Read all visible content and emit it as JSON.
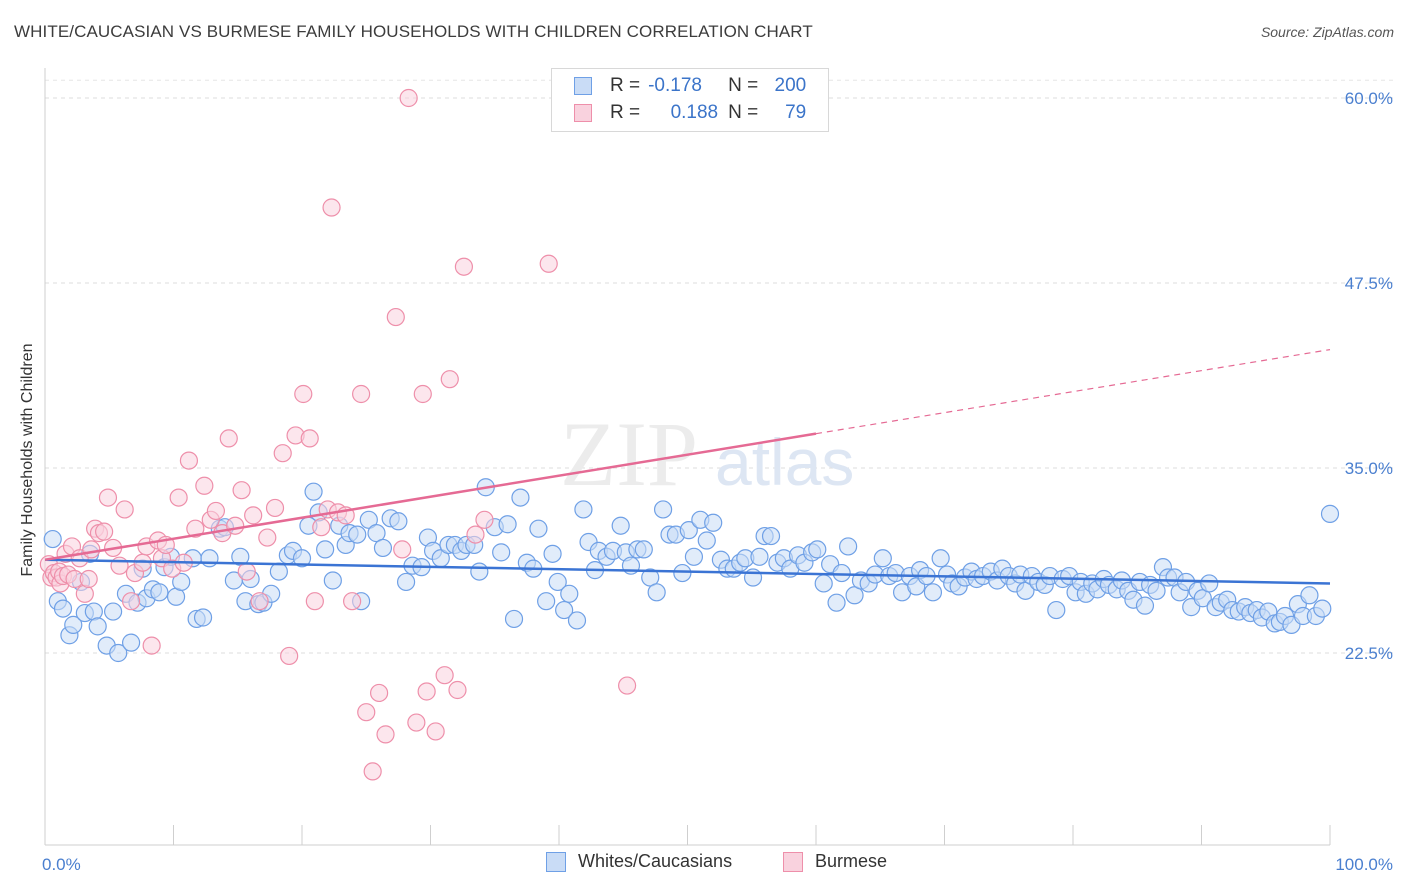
{
  "title": "WHITE/CAUCASIAN VS BURMESE FAMILY HOUSEHOLDS WITH CHILDREN CORRELATION CHART",
  "source": "Source: ZipAtlas.com",
  "watermark": "ZIPatlas",
  "legend_top": {
    "rows": [
      {
        "r_label": "R =",
        "r_value": "-0.178",
        "n_label": "N =",
        "n_value": "200",
        "color": "#6fa0e6",
        "fill": "#c9dcf6"
      },
      {
        "r_label": "R =",
        "r_value": "0.188",
        "n_label": "N =",
        "n_value": "79",
        "color": "#ee8faa",
        "fill": "#f9d2de"
      }
    ]
  },
  "legend_bottom": [
    {
      "label": "Whites/Caucasians",
      "color": "#6fa0e6",
      "fill": "#c9dcf6"
    },
    {
      "label": "Burmese",
      "color": "#ee8faa",
      "fill": "#f9d2de"
    }
  ],
  "chart_data": {
    "type": "scatter",
    "title": "WHITE/CAUCASIAN VS BURMESE FAMILY HOUSEHOLDS WITH CHILDREN CORRELATION CHART",
    "xlabel": "",
    "ylabel": "Family Households with Children",
    "x_tick_labels": [
      "0.0%",
      "100.0%"
    ],
    "y_tick_labels": [
      "22.5%",
      "35.0%",
      "47.5%",
      "60.0%"
    ],
    "y_ticks": [
      22.5,
      35.0,
      47.5,
      60.0
    ],
    "xlim": [
      0,
      100
    ],
    "ylim": [
      10,
      61
    ],
    "grid": true,
    "legend_position": "top-center",
    "series": [
      {
        "name": "Whites/Caucasians",
        "color": "#3b74d4",
        "marker_fill": "#c9dcf6",
        "marker_edge": "#6fa0e6",
        "trend": {
          "x": [
            0,
            100
          ],
          "y": [
            28.8,
            27.2
          ],
          "dashed_from": null
        },
        "points": [
          [
            0.6,
            30.2
          ],
          [
            1.0,
            26.0
          ],
          [
            1.4,
            25.5
          ],
          [
            1.9,
            23.7
          ],
          [
            2.2,
            24.4
          ],
          [
            2.8,
            27.3
          ],
          [
            3.1,
            25.2
          ],
          [
            3.5,
            29.2
          ],
          [
            3.8,
            25.3
          ],
          [
            4.1,
            24.3
          ],
          [
            4.8,
            23.0
          ],
          [
            5.3,
            25.3
          ],
          [
            5.7,
            22.5
          ],
          [
            6.3,
            26.5
          ],
          [
            6.7,
            23.2
          ],
          [
            7.2,
            25.9
          ],
          [
            7.6,
            28.2
          ],
          [
            7.9,
            26.2
          ],
          [
            8.4,
            26.8
          ],
          [
            8.9,
            26.6
          ],
          [
            9.3,
            28.3
          ],
          [
            9.8,
            29.0
          ],
          [
            10.2,
            26.3
          ],
          [
            10.6,
            27.3
          ],
          [
            11.5,
            28.9
          ],
          [
            11.8,
            24.8
          ],
          [
            12.3,
            24.9
          ],
          [
            12.8,
            28.9
          ],
          [
            13.6,
            30.9
          ],
          [
            14.0,
            31.0
          ],
          [
            14.7,
            27.4
          ],
          [
            15.2,
            29.0
          ],
          [
            15.6,
            26.0
          ],
          [
            16.0,
            27.5
          ],
          [
            16.6,
            25.8
          ],
          [
            17.0,
            25.9
          ],
          [
            17.6,
            26.5
          ],
          [
            18.2,
            28.0
          ],
          [
            18.9,
            29.1
          ],
          [
            19.3,
            29.4
          ],
          [
            20.0,
            28.9
          ],
          [
            20.5,
            31.1
          ],
          [
            20.9,
            33.4
          ],
          [
            21.3,
            32.0
          ],
          [
            21.8,
            29.5
          ],
          [
            22.4,
            27.4
          ],
          [
            22.9,
            31.1
          ],
          [
            23.4,
            29.8
          ],
          [
            23.7,
            30.6
          ],
          [
            24.3,
            30.5
          ],
          [
            24.6,
            26.0
          ],
          [
            25.2,
            31.5
          ],
          [
            25.8,
            30.6
          ],
          [
            26.3,
            29.6
          ],
          [
            26.9,
            31.6
          ],
          [
            27.5,
            31.4
          ],
          [
            28.1,
            27.3
          ],
          [
            28.6,
            28.4
          ],
          [
            29.3,
            28.3
          ],
          [
            29.8,
            30.3
          ],
          [
            30.2,
            29.4
          ],
          [
            30.8,
            28.9
          ],
          [
            31.4,
            29.8
          ],
          [
            31.9,
            29.8
          ],
          [
            32.4,
            29.4
          ],
          [
            32.8,
            29.8
          ],
          [
            33.4,
            29.8
          ],
          [
            33.8,
            28.0
          ],
          [
            34.3,
            33.7
          ],
          [
            35.0,
            31.0
          ],
          [
            35.5,
            29.3
          ],
          [
            36.0,
            31.2
          ],
          [
            36.5,
            24.8
          ],
          [
            37.0,
            33.0
          ],
          [
            37.5,
            28.6
          ],
          [
            38.0,
            28.2
          ],
          [
            38.4,
            30.9
          ],
          [
            39.0,
            26.0
          ],
          [
            39.5,
            29.2
          ],
          [
            39.9,
            27.3
          ],
          [
            40.4,
            25.4
          ],
          [
            40.8,
            26.5
          ],
          [
            41.4,
            24.7
          ],
          [
            41.9,
            32.2
          ],
          [
            42.3,
            30.0
          ],
          [
            42.8,
            28.1
          ],
          [
            43.1,
            29.4
          ],
          [
            43.7,
            29.0
          ],
          [
            44.2,
            29.4
          ],
          [
            44.8,
            31.1
          ],
          [
            45.2,
            29.3
          ],
          [
            45.6,
            28.4
          ],
          [
            46.1,
            29.5
          ],
          [
            46.6,
            29.5
          ],
          [
            47.1,
            27.6
          ],
          [
            47.6,
            26.6
          ],
          [
            48.1,
            32.2
          ],
          [
            48.6,
            30.5
          ],
          [
            49.1,
            30.5
          ],
          [
            49.6,
            27.9
          ],
          [
            50.1,
            30.8
          ],
          [
            50.5,
            29.0
          ],
          [
            51.0,
            31.5
          ],
          [
            51.5,
            30.1
          ],
          [
            52.0,
            31.3
          ],
          [
            52.6,
            28.8
          ],
          [
            53.1,
            28.2
          ],
          [
            53.6,
            28.2
          ],
          [
            54.1,
            28.6
          ],
          [
            54.5,
            28.9
          ],
          [
            55.1,
            27.6
          ],
          [
            55.6,
            29.0
          ],
          [
            56.0,
            30.4
          ],
          [
            56.5,
            30.4
          ],
          [
            57.0,
            28.6
          ],
          [
            57.5,
            28.9
          ],
          [
            58.0,
            28.2
          ],
          [
            58.6,
            29.1
          ],
          [
            59.1,
            28.6
          ],
          [
            59.7,
            29.3
          ],
          [
            60.1,
            29.5
          ],
          [
            60.6,
            27.2
          ],
          [
            61.1,
            28.5
          ],
          [
            61.6,
            25.9
          ],
          [
            62.0,
            27.9
          ],
          [
            62.5,
            29.7
          ],
          [
            63.0,
            26.4
          ],
          [
            63.5,
            27.4
          ],
          [
            64.1,
            27.2
          ],
          [
            64.6,
            27.8
          ],
          [
            65.2,
            28.9
          ],
          [
            65.7,
            27.7
          ],
          [
            66.2,
            27.9
          ],
          [
            66.7,
            26.6
          ],
          [
            67.3,
            27.7
          ],
          [
            67.8,
            27.0
          ],
          [
            68.1,
            28.1
          ],
          [
            68.6,
            27.7
          ],
          [
            69.1,
            26.6
          ],
          [
            69.7,
            28.9
          ],
          [
            70.2,
            27.8
          ],
          [
            70.6,
            27.2
          ],
          [
            71.1,
            27.0
          ],
          [
            71.6,
            27.6
          ],
          [
            72.1,
            28.0
          ],
          [
            72.5,
            27.5
          ],
          [
            73.0,
            27.7
          ],
          [
            73.6,
            28.0
          ],
          [
            74.1,
            27.4
          ],
          [
            74.5,
            28.2
          ],
          [
            75.0,
            27.7
          ],
          [
            75.5,
            27.2
          ],
          [
            75.9,
            27.8
          ],
          [
            76.3,
            26.7
          ],
          [
            76.8,
            27.7
          ],
          [
            77.3,
            27.3
          ],
          [
            77.8,
            27.1
          ],
          [
            78.2,
            27.7
          ],
          [
            78.7,
            25.4
          ],
          [
            79.2,
            27.5
          ],
          [
            79.7,
            27.7
          ],
          [
            80.2,
            26.6
          ],
          [
            80.6,
            27.3
          ],
          [
            81.0,
            26.5
          ],
          [
            81.5,
            27.2
          ],
          [
            81.9,
            26.8
          ],
          [
            82.4,
            27.5
          ],
          [
            82.8,
            27.1
          ],
          [
            83.4,
            26.8
          ],
          [
            83.8,
            27.4
          ],
          [
            84.3,
            26.7
          ],
          [
            84.7,
            26.1
          ],
          [
            85.2,
            27.3
          ],
          [
            85.6,
            25.7
          ],
          [
            86.0,
            27.1
          ],
          [
            86.5,
            26.7
          ],
          [
            87.0,
            28.3
          ],
          [
            87.4,
            27.6
          ],
          [
            87.9,
            27.6
          ],
          [
            88.3,
            26.6
          ],
          [
            88.8,
            27.3
          ],
          [
            89.2,
            25.6
          ],
          [
            89.7,
            26.7
          ],
          [
            90.1,
            26.2
          ],
          [
            90.6,
            27.2
          ],
          [
            91.1,
            25.6
          ],
          [
            91.5,
            25.9
          ],
          [
            92.0,
            26.1
          ],
          [
            92.4,
            25.4
          ],
          [
            92.9,
            25.3
          ],
          [
            93.4,
            25.6
          ],
          [
            93.8,
            25.2
          ],
          [
            94.3,
            25.4
          ],
          [
            94.7,
            24.9
          ],
          [
            95.2,
            25.3
          ],
          [
            95.7,
            24.5
          ],
          [
            96.1,
            24.6
          ],
          [
            96.5,
            25.0
          ],
          [
            97.0,
            24.4
          ],
          [
            97.5,
            25.8
          ],
          [
            97.9,
            25.0
          ],
          [
            98.4,
            26.4
          ],
          [
            98.9,
            25.0
          ],
          [
            99.4,
            25.5
          ],
          [
            100.0,
            31.9
          ]
        ]
      },
      {
        "name": "Burmese",
        "color": "#e56a94",
        "marker_fill": "#f9d2de",
        "marker_edge": "#ee8faa",
        "trend": {
          "x": [
            0,
            100
          ],
          "y": [
            28.8,
            43.0
          ],
          "solid_until": 60
        },
        "points": [
          [
            0.3,
            28.5
          ],
          [
            0.5,
            27.6
          ],
          [
            0.7,
            27.9
          ],
          [
            0.9,
            27.6
          ],
          [
            1.1,
            28.0
          ],
          [
            1.2,
            27.2
          ],
          [
            1.4,
            27.7
          ],
          [
            1.6,
            29.2
          ],
          [
            1.8,
            27.8
          ],
          [
            2.1,
            29.7
          ],
          [
            2.3,
            27.5
          ],
          [
            2.7,
            28.9
          ],
          [
            3.1,
            26.5
          ],
          [
            3.4,
            27.5
          ],
          [
            3.6,
            29.5
          ],
          [
            3.9,
            30.9
          ],
          [
            4.2,
            30.6
          ],
          [
            4.6,
            30.7
          ],
          [
            4.9,
            33.0
          ],
          [
            5.3,
            29.6
          ],
          [
            5.8,
            28.4
          ],
          [
            6.2,
            32.2
          ],
          [
            6.7,
            26.0
          ],
          [
            7.0,
            27.9
          ],
          [
            7.6,
            28.6
          ],
          [
            7.9,
            29.7
          ],
          [
            8.3,
            23.0
          ],
          [
            8.8,
            30.1
          ],
          [
            9.1,
            28.9
          ],
          [
            9.4,
            29.8
          ],
          [
            9.9,
            28.2
          ],
          [
            10.4,
            33.0
          ],
          [
            10.8,
            28.6
          ],
          [
            11.2,
            35.5
          ],
          [
            11.7,
            30.9
          ],
          [
            12.4,
            33.8
          ],
          [
            12.9,
            31.5
          ],
          [
            13.3,
            32.1
          ],
          [
            13.8,
            30.6
          ],
          [
            14.3,
            37.0
          ],
          [
            14.8,
            31.1
          ],
          [
            15.3,
            33.5
          ],
          [
            15.7,
            28.0
          ],
          [
            16.2,
            31.8
          ],
          [
            16.7,
            26.0
          ],
          [
            17.3,
            30.3
          ],
          [
            17.9,
            32.3
          ],
          [
            18.5,
            36.0
          ],
          [
            19.0,
            22.3
          ],
          [
            19.5,
            37.2
          ],
          [
            20.1,
            40.0
          ],
          [
            20.6,
            37.0
          ],
          [
            21.0,
            26.0
          ],
          [
            21.5,
            31.0
          ],
          [
            22.0,
            32.2
          ],
          [
            22.3,
            52.6
          ],
          [
            22.8,
            32.0
          ],
          [
            23.4,
            31.8
          ],
          [
            23.9,
            26.0
          ],
          [
            24.6,
            40.0
          ],
          [
            25.0,
            18.5
          ],
          [
            25.5,
            14.5
          ],
          [
            26.0,
            19.8
          ],
          [
            26.5,
            17.0
          ],
          [
            27.3,
            45.2
          ],
          [
            27.8,
            29.5
          ],
          [
            28.3,
            60.0
          ],
          [
            28.9,
            17.8
          ],
          [
            29.4,
            40.0
          ],
          [
            29.7,
            19.9
          ],
          [
            30.4,
            17.2
          ],
          [
            31.1,
            21.0
          ],
          [
            31.5,
            41.0
          ],
          [
            32.1,
            20.0
          ],
          [
            32.6,
            48.6
          ],
          [
            33.5,
            30.5
          ],
          [
            34.2,
            31.5
          ],
          [
            39.2,
            48.8
          ],
          [
            45.3,
            20.3
          ]
        ]
      }
    ]
  }
}
